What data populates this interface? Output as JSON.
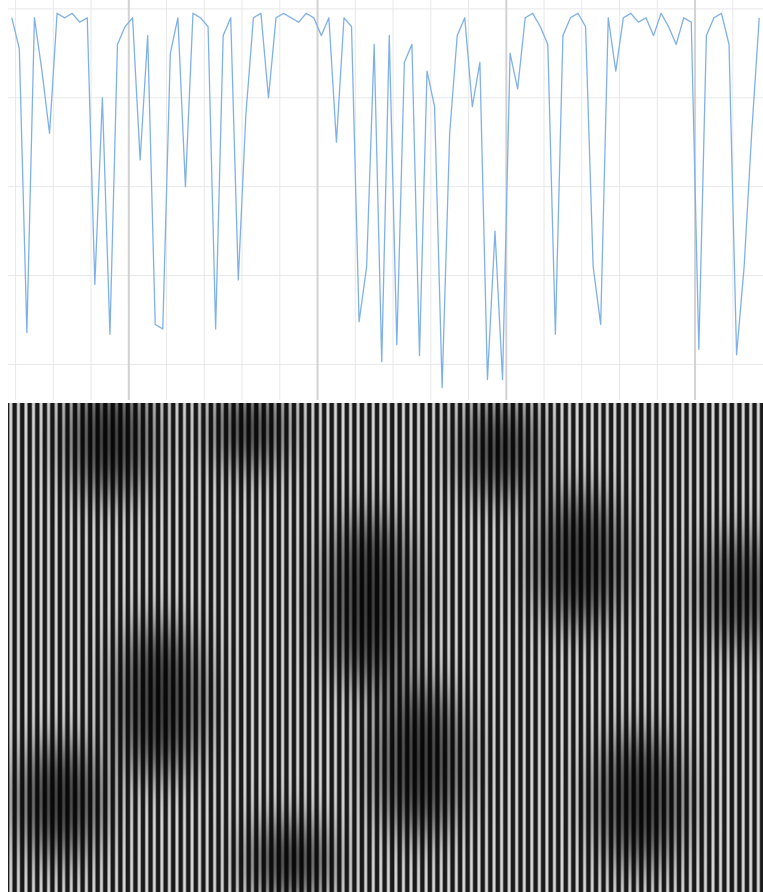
{
  "chart_data": {
    "type": "line",
    "x": [
      -1,
      1,
      3,
      5,
      7,
      9,
      11,
      13,
      15,
      17,
      19,
      21,
      23,
      25,
      27,
      29,
      31,
      33,
      35,
      37,
      39,
      41,
      43,
      45,
      47,
      49,
      51,
      53,
      55,
      57,
      59,
      61,
      63,
      65,
      67,
      69,
      71,
      73,
      75,
      77,
      79,
      81,
      83,
      85,
      87,
      89,
      91,
      93,
      95,
      97,
      99,
      101,
      103,
      105,
      107,
      109,
      111,
      113,
      115,
      117,
      119,
      121,
      123,
      125,
      127,
      129,
      131,
      133,
      135,
      137,
      139,
      141,
      143,
      145,
      147,
      149,
      151,
      153,
      155,
      157,
      159,
      161,
      163,
      165,
      167,
      169,
      171,
      173,
      175,
      177,
      179,
      181,
      183,
      185,
      187,
      189,
      191,
      193,
      195,
      197
    ],
    "values": [
      3.9,
      3.55,
      0.36,
      3.9,
      3.3,
      2.6,
      3.95,
      3.9,
      3.95,
      3.85,
      3.9,
      0.9,
      3.0,
      0.34,
      3.6,
      3.8,
      3.9,
      2.3,
      3.7,
      0.45,
      0.4,
      3.5,
      3.9,
      2.0,
      3.95,
      3.9,
      3.8,
      0.4,
      3.7,
      3.9,
      0.95,
      2.8,
      3.9,
      3.95,
      3.0,
      3.9,
      3.95,
      3.9,
      3.85,
      3.95,
      3.9,
      3.7,
      3.9,
      2.5,
      3.9,
      3.8,
      0.48,
      1.1,
      3.6,
      0.03,
      3.7,
      0.22,
      3.4,
      3.6,
      0.1,
      3.3,
      2.9,
      -0.26,
      2.6,
      3.7,
      3.9,
      2.9,
      3.4,
      -0.17,
      1.5,
      -0.17,
      3.5,
      3.1,
      3.9,
      3.95,
      3.8,
      3.6,
      0.34,
      3.7,
      3.9,
      3.95,
      3.8,
      1.1,
      0.45,
      3.9,
      3.3,
      3.9,
      3.95,
      3.85,
      3.9,
      3.7,
      3.95,
      3.8,
      3.6,
      3.9,
      3.85,
      0.17,
      3.7,
      3.9,
      3.95,
      3.6,
      0.11,
      1.1,
      2.6,
      3.9
    ],
    "color": "#7fb1e8",
    "xlim": [
      -2,
      198
    ],
    "ylim": [
      -0.4,
      4.1
    ],
    "xticks": [
      0,
      10,
      20,
      30,
      40,
      50,
      60,
      70,
      80,
      90,
      100,
      110,
      120,
      130,
      140,
      150,
      160,
      170,
      180,
      190
    ],
    "xticks_major": [
      30,
      80,
      130,
      180
    ],
    "yticks": [
      0,
      1,
      2,
      3,
      4
    ],
    "grid": true
  }
}
